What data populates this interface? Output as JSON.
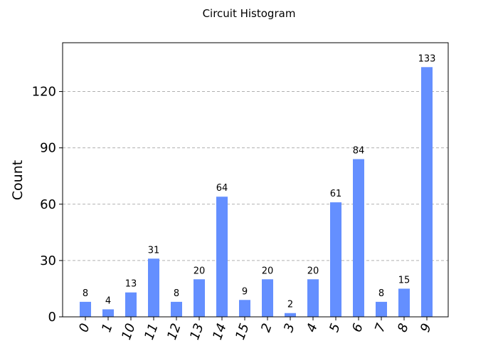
{
  "chart_data": {
    "type": "bar",
    "title": "Circuit Histogram",
    "xlabel": "",
    "ylabel": "Count",
    "categories": [
      "0",
      "1",
      "10",
      "11",
      "12",
      "13",
      "14",
      "15",
      "2",
      "3",
      "4",
      "5",
      "6",
      "7",
      "8",
      "9"
    ],
    "values": [
      8,
      4,
      13,
      31,
      8,
      20,
      64,
      9,
      20,
      2,
      20,
      61,
      84,
      8,
      15,
      133
    ],
    "ylim": [
      0,
      146
    ],
    "yticks": [
      0,
      30,
      60,
      90,
      120
    ],
    "grid": "y-dashed",
    "bar_color": "#648fff",
    "legend": "none"
  }
}
